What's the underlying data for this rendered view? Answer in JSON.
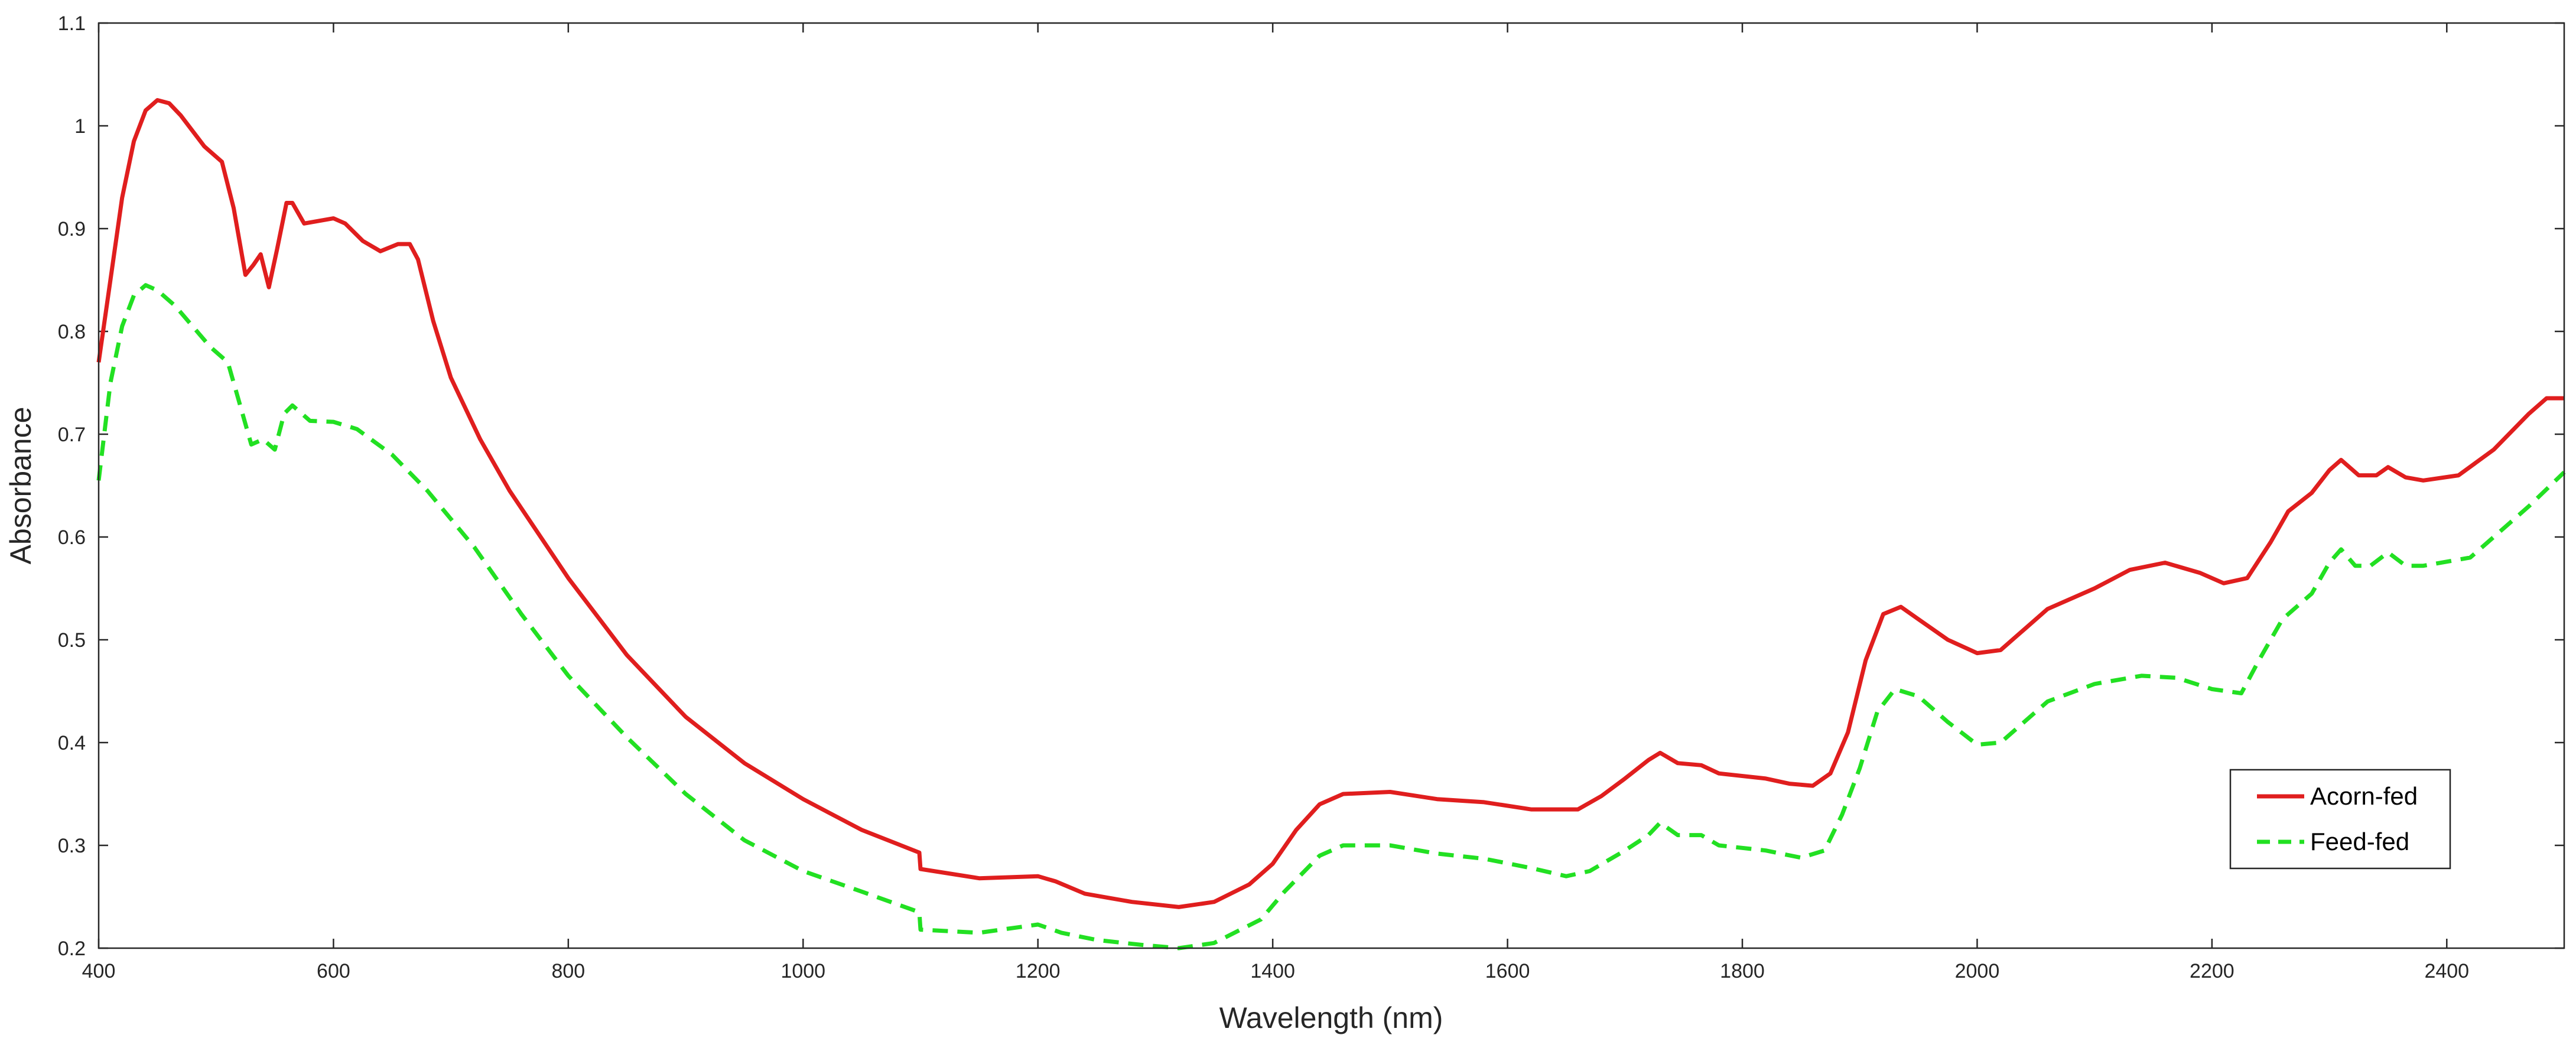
{
  "chart_data": {
    "type": "line",
    "xlabel": "Wavelength (nm)",
    "ylabel": "Absorbance",
    "xlim": [
      400,
      2500
    ],
    "ylim": [
      0.2,
      1.1
    ],
    "xticks": [
      400,
      600,
      800,
      1000,
      1200,
      1400,
      1600,
      1800,
      2000,
      2200,
      2400
    ],
    "yticks": [
      0.2,
      0.3,
      0.4,
      0.5,
      0.6,
      0.7,
      0.8,
      0.9,
      1,
      1.1
    ],
    "grid": false,
    "legend_position": "bottom-right",
    "series": [
      {
        "name": "Acorn-fed",
        "color": "#e01e1e",
        "style": "solid",
        "points": [
          [
            400,
            0.77
          ],
          [
            410,
            0.85
          ],
          [
            420,
            0.93
          ],
          [
            430,
            0.985
          ],
          [
            440,
            1.015
          ],
          [
            450,
            1.025
          ],
          [
            460,
            1.022
          ],
          [
            470,
            1.01
          ],
          [
            490,
            0.98
          ],
          [
            505,
            0.965
          ],
          [
            515,
            0.92
          ],
          [
            525,
            0.855
          ],
          [
            532,
            0.865
          ],
          [
            538,
            0.875
          ],
          [
            545,
            0.843
          ],
          [
            552,
            0.88
          ],
          [
            560,
            0.925
          ],
          [
            565,
            0.925
          ],
          [
            575,
            0.905
          ],
          [
            600,
            0.91
          ],
          [
            610,
            0.905
          ],
          [
            625,
            0.888
          ],
          [
            640,
            0.878
          ],
          [
            655,
            0.885
          ],
          [
            665,
            0.885
          ],
          [
            672,
            0.87
          ],
          [
            685,
            0.81
          ],
          [
            700,
            0.755
          ],
          [
            725,
            0.695
          ],
          [
            750,
            0.645
          ],
          [
            800,
            0.56
          ],
          [
            850,
            0.485
          ],
          [
            900,
            0.425
          ],
          [
            950,
            0.38
          ],
          [
            1000,
            0.345
          ],
          [
            1050,
            0.315
          ],
          [
            1099,
            0.293
          ],
          [
            1100,
            0.277
          ],
          [
            1150,
            0.268
          ],
          [
            1200,
            0.27
          ],
          [
            1215,
            0.265
          ],
          [
            1240,
            0.253
          ],
          [
            1280,
            0.245
          ],
          [
            1320,
            0.24
          ],
          [
            1350,
            0.245
          ],
          [
            1380,
            0.262
          ],
          [
            1400,
            0.282
          ],
          [
            1420,
            0.315
          ],
          [
            1440,
            0.34
          ],
          [
            1460,
            0.35
          ],
          [
            1500,
            0.352
          ],
          [
            1540,
            0.345
          ],
          [
            1580,
            0.342
          ],
          [
            1620,
            0.335
          ],
          [
            1660,
            0.335
          ],
          [
            1680,
            0.348
          ],
          [
            1700,
            0.365
          ],
          [
            1720,
            0.383
          ],
          [
            1730,
            0.39
          ],
          [
            1745,
            0.38
          ],
          [
            1765,
            0.378
          ],
          [
            1780,
            0.37
          ],
          [
            1820,
            0.365
          ],
          [
            1840,
            0.36
          ],
          [
            1860,
            0.358
          ],
          [
            1875,
            0.37
          ],
          [
            1890,
            0.41
          ],
          [
            1905,
            0.48
          ],
          [
            1920,
            0.525
          ],
          [
            1935,
            0.532
          ],
          [
            1950,
            0.52
          ],
          [
            1975,
            0.5
          ],
          [
            2000,
            0.487
          ],
          [
            2020,
            0.49
          ],
          [
            2035,
            0.505
          ],
          [
            2060,
            0.53
          ],
          [
            2100,
            0.55
          ],
          [
            2130,
            0.568
          ],
          [
            2160,
            0.575
          ],
          [
            2190,
            0.565
          ],
          [
            2210,
            0.555
          ],
          [
            2230,
            0.56
          ],
          [
            2250,
            0.595
          ],
          [
            2265,
            0.625
          ],
          [
            2285,
            0.643
          ],
          [
            2300,
            0.665
          ],
          [
            2310,
            0.675
          ],
          [
            2325,
            0.66
          ],
          [
            2340,
            0.66
          ],
          [
            2350,
            0.668
          ],
          [
            2365,
            0.658
          ],
          [
            2380,
            0.655
          ],
          [
            2410,
            0.66
          ],
          [
            2440,
            0.685
          ],
          [
            2470,
            0.72
          ],
          [
            2485,
            0.735
          ],
          [
            2500,
            0.735
          ]
        ]
      },
      {
        "name": "Feed-fed",
        "color": "#22e022",
        "style": "dashed",
        "points": [
          [
            400,
            0.655
          ],
          [
            410,
            0.75
          ],
          [
            420,
            0.805
          ],
          [
            430,
            0.835
          ],
          [
            440,
            0.845
          ],
          [
            450,
            0.84
          ],
          [
            465,
            0.825
          ],
          [
            480,
            0.805
          ],
          [
            495,
            0.785
          ],
          [
            510,
            0.77
          ],
          [
            520,
            0.73
          ],
          [
            530,
            0.69
          ],
          [
            540,
            0.695
          ],
          [
            550,
            0.685
          ],
          [
            558,
            0.72
          ],
          [
            565,
            0.728
          ],
          [
            580,
            0.713
          ],
          [
            600,
            0.712
          ],
          [
            620,
            0.705
          ],
          [
            650,
            0.68
          ],
          [
            680,
            0.645
          ],
          [
            720,
            0.59
          ],
          [
            760,
            0.525
          ],
          [
            800,
            0.465
          ],
          [
            850,
            0.405
          ],
          [
            900,
            0.35
          ],
          [
            950,
            0.305
          ],
          [
            1000,
            0.275
          ],
          [
            1050,
            0.255
          ],
          [
            1099,
            0.235
          ],
          [
            1100,
            0.218
          ],
          [
            1150,
            0.215
          ],
          [
            1200,
            0.223
          ],
          [
            1220,
            0.215
          ],
          [
            1250,
            0.208
          ],
          [
            1290,
            0.203
          ],
          [
            1320,
            0.2
          ],
          [
            1350,
            0.205
          ],
          [
            1390,
            0.228
          ],
          [
            1410,
            0.255
          ],
          [
            1440,
            0.29
          ],
          [
            1460,
            0.3
          ],
          [
            1500,
            0.3
          ],
          [
            1540,
            0.292
          ],
          [
            1580,
            0.287
          ],
          [
            1620,
            0.278
          ],
          [
            1650,
            0.27
          ],
          [
            1670,
            0.275
          ],
          [
            1700,
            0.295
          ],
          [
            1720,
            0.31
          ],
          [
            1730,
            0.322
          ],
          [
            1745,
            0.31
          ],
          [
            1765,
            0.31
          ],
          [
            1780,
            0.3
          ],
          [
            1820,
            0.295
          ],
          [
            1850,
            0.288
          ],
          [
            1870,
            0.295
          ],
          [
            1885,
            0.33
          ],
          [
            1900,
            0.375
          ],
          [
            1915,
            0.43
          ],
          [
            1930,
            0.452
          ],
          [
            1950,
            0.445
          ],
          [
            1975,
            0.42
          ],
          [
            2000,
            0.398
          ],
          [
            2020,
            0.4
          ],
          [
            2040,
            0.42
          ],
          [
            2060,
            0.44
          ],
          [
            2100,
            0.457
          ],
          [
            2140,
            0.465
          ],
          [
            2170,
            0.463
          ],
          [
            2200,
            0.452
          ],
          [
            2225,
            0.448
          ],
          [
            2240,
            0.48
          ],
          [
            2260,
            0.52
          ],
          [
            2285,
            0.545
          ],
          [
            2300,
            0.575
          ],
          [
            2310,
            0.588
          ],
          [
            2322,
            0.572
          ],
          [
            2335,
            0.572
          ],
          [
            2350,
            0.585
          ],
          [
            2365,
            0.572
          ],
          [
            2380,
            0.572
          ],
          [
            2420,
            0.58
          ],
          [
            2445,
            0.605
          ],
          [
            2470,
            0.63
          ],
          [
            2500,
            0.663
          ]
        ]
      }
    ]
  }
}
